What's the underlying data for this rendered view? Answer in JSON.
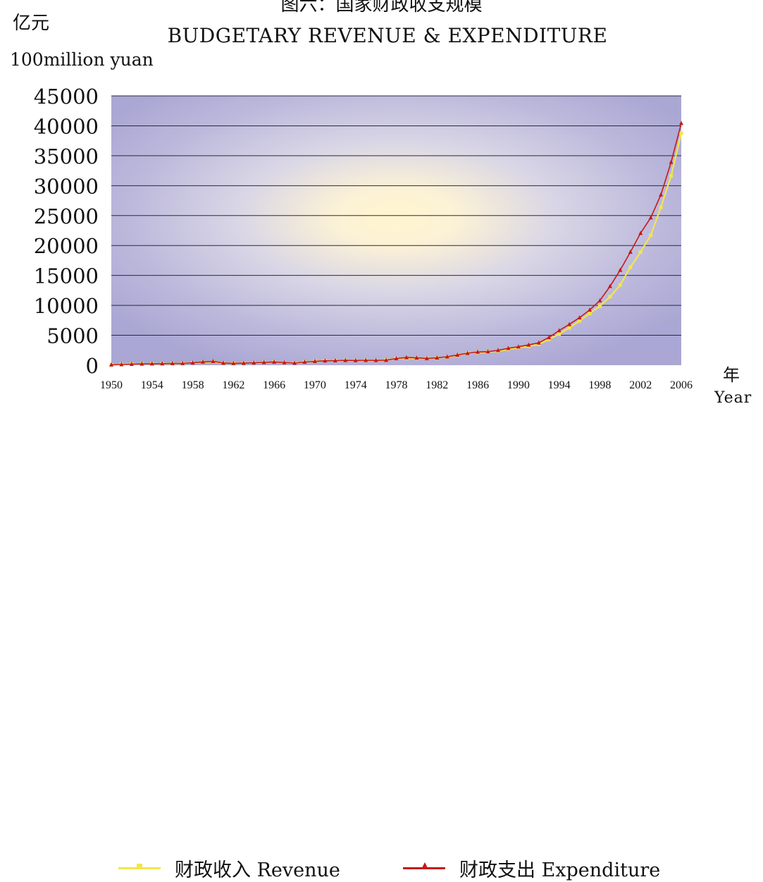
{
  "title_cn": "图六：国家财政收支规模",
  "title_en": "BUDGETARY REVENUE & EXPENDITURE",
  "y_unit_cn": "亿元",
  "y_unit_en": "100million yuan",
  "x_unit_cn": "年",
  "x_unit_en": "Year",
  "legend": [
    {
      "label": "财政收入 Revenue",
      "color": "#f2e64b"
    },
    {
      "label": "财政支出 Expenditure",
      "color": "#c41a1a"
    }
  ],
  "chart_data": {
    "type": "line",
    "title": "BUDGETARY REVENUE & EXPENDITURE",
    "ylabel": "100million yuan",
    "xlabel": "Year",
    "ylim": [
      0,
      45000
    ],
    "xlim": [
      1950,
      2006
    ],
    "yticks": [
      "0",
      "5000",
      "10000",
      "15000",
      "20000",
      "25000",
      "30000",
      "35000",
      "40000",
      "45000"
    ],
    "xticks": [
      "1950",
      "1954",
      "1958",
      "1962",
      "1966",
      "1970",
      "1974",
      "1978",
      "1982",
      "1986",
      "1990",
      "1994",
      "1998",
      "2002",
      "2006"
    ],
    "grid": true,
    "legend_position": "bottom",
    "x": [
      1950,
      1951,
      1952,
      1953,
      1954,
      1955,
      1956,
      1957,
      1958,
      1959,
      1960,
      1961,
      1962,
      1963,
      1964,
      1965,
      1966,
      1967,
      1968,
      1969,
      1970,
      1971,
      1972,
      1973,
      1974,
      1975,
      1976,
      1977,
      1978,
      1979,
      1980,
      1981,
      1982,
      1983,
      1984,
      1985,
      1986,
      1987,
      1988,
      1989,
      1990,
      1991,
      1992,
      1993,
      1994,
      1995,
      1996,
      1997,
      1998,
      1999,
      2000,
      2001,
      2002,
      2003,
      2004,
      2005,
      2006
    ],
    "series": [
      {
        "name": "财政收入 Revenue",
        "color": "#f2e64b",
        "marker": "square",
        "values": [
          62,
          125,
          184,
          222,
          262,
          250,
          281,
          304,
          388,
          487,
          572,
          356,
          313,
          342,
          400,
          473,
          558,
          419,
          361,
          527,
          663,
          744,
          767,
          809,
          783,
          816,
          776,
          874,
          1132,
          1146,
          1160,
          1176,
          1212,
          1367,
          1643,
          2005,
          2122,
          2199,
          2357,
          2665,
          2937,
          3149,
          3483,
          4349,
          5218,
          6242,
          7408,
          8651,
          9876,
          11444,
          13395,
          16386,
          18904,
          21715,
          26396,
          31649,
          38760
        ]
      },
      {
        "name": "财政支出 Expenditure",
        "color": "#c41a1a",
        "marker": "triangle",
        "values": [
          68,
          122,
          176,
          220,
          244,
          262,
          298,
          296,
          400,
          544,
          644,
          367,
          305,
          340,
          399,
          466,
          541,
          442,
          358,
          526,
          649,
          732,
          766,
          809,
          791,
          821,
          806,
          843,
          1122,
          1282,
          1229,
          1138,
          1230,
          1410,
          1701,
          2004,
          2205,
          2262,
          2491,
          2824,
          3084,
          3387,
          3742,
          4643,
          5793,
          6824,
          7938,
          9234,
          10798,
          13188,
          15887,
          18903,
          22053,
          24650,
          28487,
          33930,
          40423
        ]
      }
    ]
  }
}
